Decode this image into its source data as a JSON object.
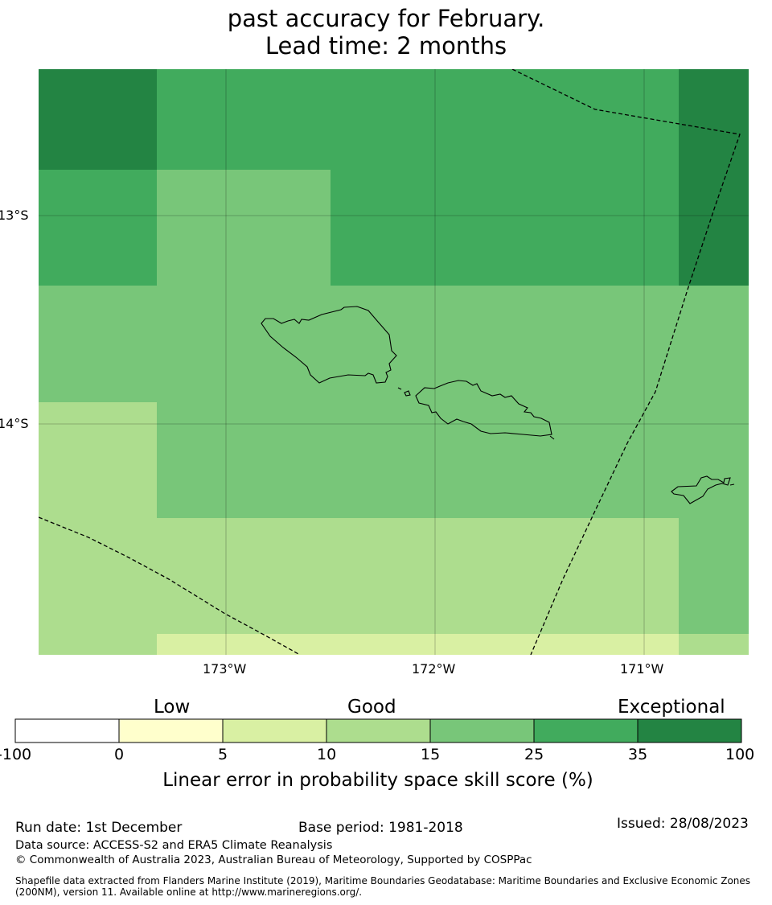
{
  "title": {
    "line1": "past accuracy for February.",
    "line2": "Lead time: 2 months"
  },
  "map": {
    "lat_labels": [
      "13°S",
      "14°S"
    ],
    "lon_labels": [
      "173°W",
      "172°W",
      "171°W"
    ],
    "colors": {
      "c0": "#ffffff",
      "c5": "#ffffcc",
      "c10": "#d9f0a3",
      "c15": "#addd8e",
      "c25": "#78c679",
      "c35": "#41ab5d",
      "c100": "#238443"
    }
  },
  "colorbar": {
    "categories": [
      "Low",
      "Good",
      "Exceptional"
    ],
    "ticks": [
      "-100",
      "0",
      "5",
      "10",
      "15",
      "25",
      "35",
      "100"
    ],
    "label": "Linear error in probability space skill score (%)"
  },
  "footer": {
    "run_date": "Run date: 1st December",
    "base_period": "Base period: 1981-2018",
    "issued": "Issued: 28/08/2023",
    "data_source": "Data source: ACCESS-S2 and ERA5 Climate Reanalysis",
    "copyright": "© Commonwealth of Australia 2023, Australian Bureau of Meteorology, Supported by COSPPac",
    "shapefile_line1": "Shapefile data extracted from Flanders Marine Institute (2019), Maritime Boundaries Geodatabase: Maritime Boundaries and Exclusive Economic Zones",
    "shapefile_line2": "(200NM), version 11. Available online at http://www.marineregions.org/."
  }
}
